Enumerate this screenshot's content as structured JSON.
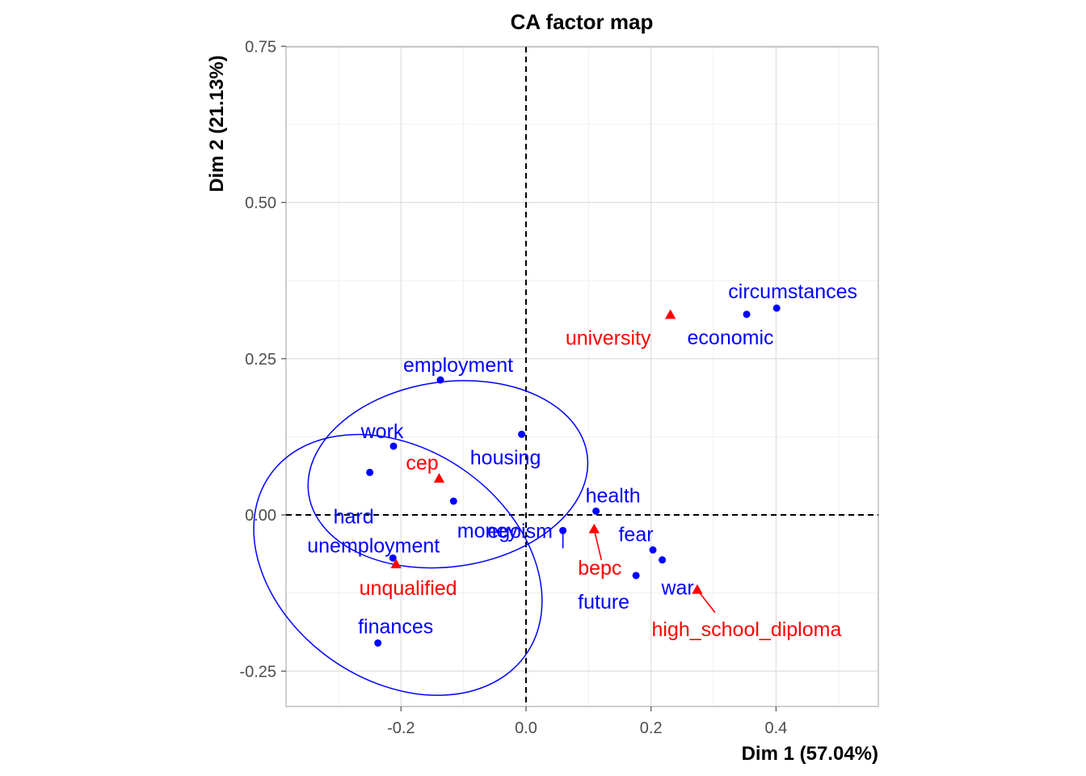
{
  "chart_data": {
    "type": "scatter",
    "title": "CA factor map",
    "xlabel": "Dim 1 (57.04%)",
    "ylabel": "Dim 2 (21.13%)",
    "xlim": [
      -0.385,
      0.565
    ],
    "ylim": [
      -0.305,
      0.75
    ],
    "x_ticks": [
      -0.2,
      0.0,
      0.2,
      0.4
    ],
    "x_tick_labels": [
      "-0.2",
      "0.0",
      "0.2",
      "0.4"
    ],
    "y_ticks": [
      -0.25,
      0.0,
      0.25,
      0.5,
      0.75
    ],
    "y_tick_labels": [
      "-0.25",
      "0.00",
      "0.25",
      "0.50",
      "0.75"
    ],
    "grid": true,
    "reference_lines": {
      "x": 0,
      "y": 0,
      "style": "dashed"
    },
    "colors": {
      "rows": "#0000ff",
      "columns": "#ff0000"
    },
    "row_points": [
      {
        "label": "circumstances",
        "x": 0.401,
        "y": 0.331
      },
      {
        "label": "economic",
        "x": 0.353,
        "y": 0.321
      },
      {
        "label": "employment",
        "x": -0.137,
        "y": 0.216
      },
      {
        "label": "housing",
        "x": -0.007,
        "y": 0.129
      },
      {
        "label": "work",
        "x": -0.212,
        "y": 0.11
      },
      {
        "label": "hard",
        "x": -0.25,
        "y": 0.068
      },
      {
        "label": "money",
        "x": -0.116,
        "y": 0.022
      },
      {
        "label": "health",
        "x": 0.112,
        "y": 0.006
      },
      {
        "label": "egoism",
        "x": 0.059,
        "y": -0.025
      },
      {
        "label": "fear",
        "x": 0.203,
        "y": -0.056
      },
      {
        "label": "war",
        "x": 0.218,
        "y": -0.072
      },
      {
        "label": "future",
        "x": 0.176,
        "y": -0.097
      },
      {
        "label": "unemployment",
        "x": -0.213,
        "y": -0.069
      },
      {
        "label": "finances",
        "x": -0.237,
        "y": -0.205
      }
    ],
    "column_points": [
      {
        "label": "university",
        "x": 0.231,
        "y": 0.32
      },
      {
        "label": "cep",
        "x": -0.139,
        "y": 0.058
      },
      {
        "label": "bepc",
        "x": 0.109,
        "y": -0.023
      },
      {
        "label": "high_school_diploma",
        "x": 0.274,
        "y": -0.12
      },
      {
        "label": "unqualified",
        "x": -0.208,
        "y": -0.079
      }
    ],
    "ellipses": [
      {
        "for": "cep",
        "cx": -0.125,
        "cy": 0.065,
        "rx": 0.225,
        "ry": 0.148,
        "angle": -8
      },
      {
        "for": "unqualified",
        "cx": -0.205,
        "cy": -0.08,
        "rx": 0.25,
        "ry": 0.185,
        "angle": 35
      }
    ]
  }
}
